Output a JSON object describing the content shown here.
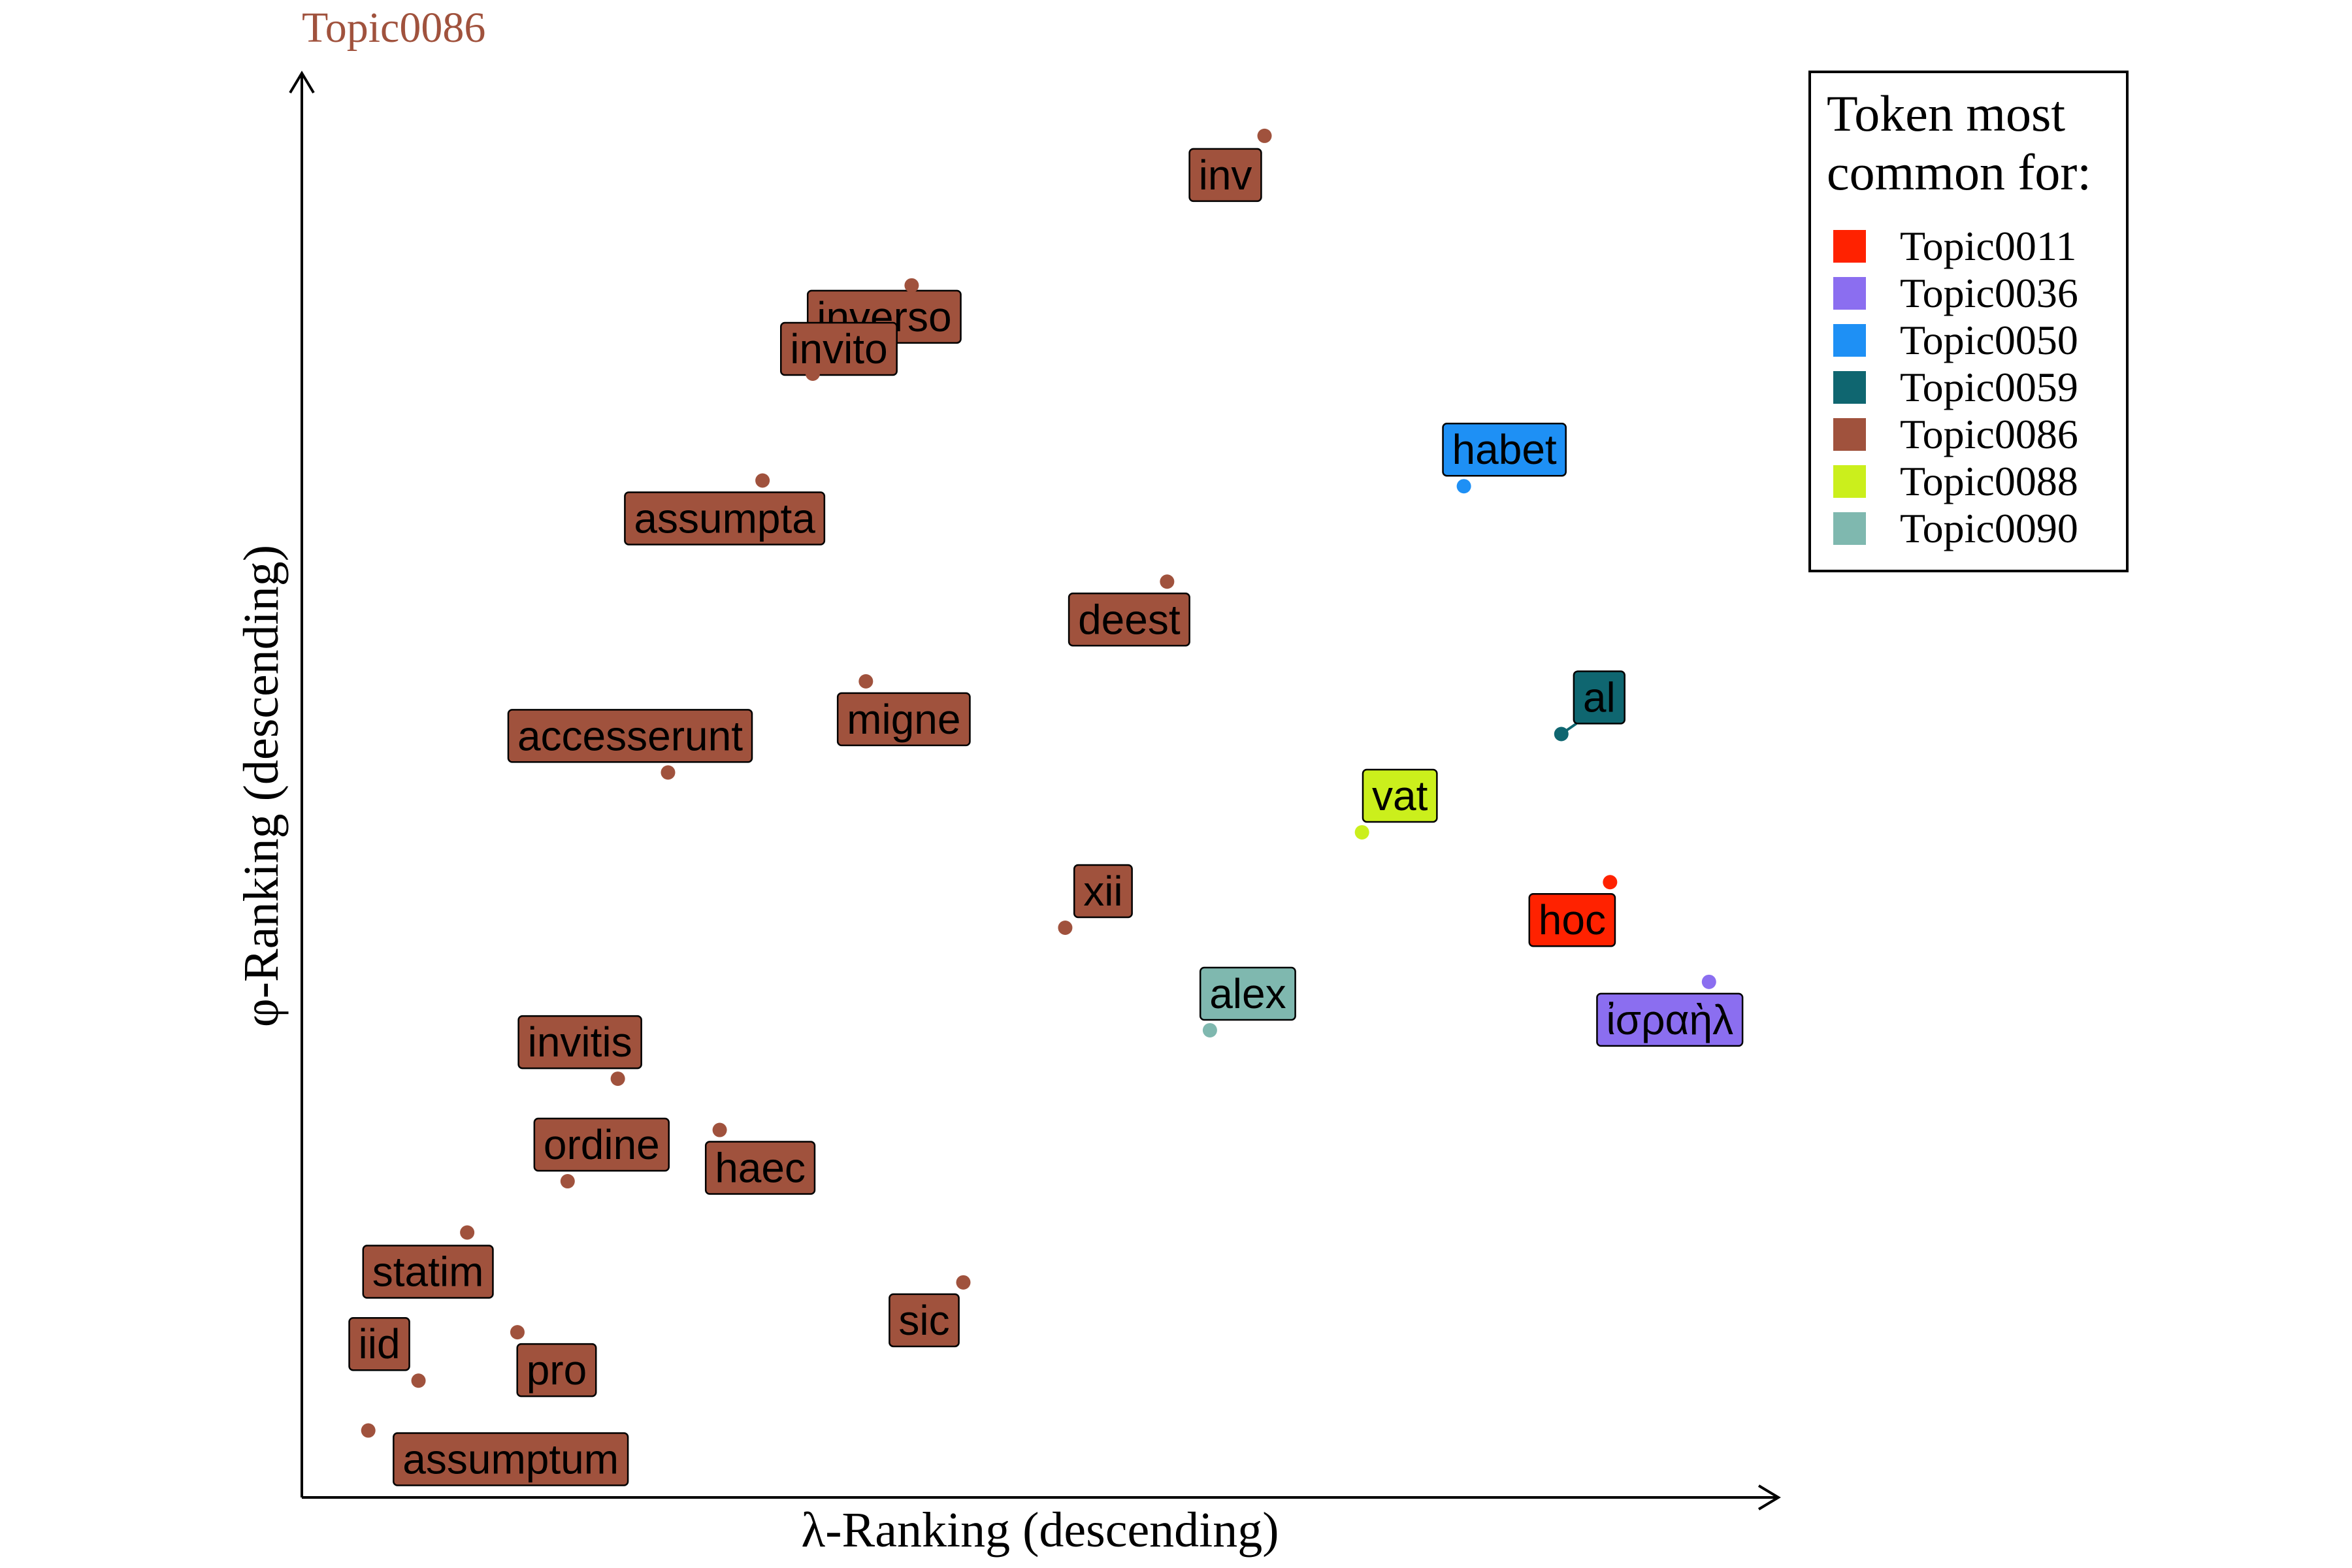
{
  "chart_data": {
    "type": "scatter",
    "title": "Topic0086",
    "title_color": "#A0523D",
    "xlabel": "λ-Ranking (descending)",
    "ylabel": "φ-Ranking (descending)",
    "xlim": [
      0,
      100
    ],
    "ylim": [
      0,
      100
    ],
    "grid": false,
    "legend": {
      "title_line1": "Token most",
      "title_line2": "common for:",
      "placement": "top-right",
      "items": [
        {
          "name": "Topic0011",
          "color": "#FF2200"
        },
        {
          "name": "Topic0036",
          "color": "#8B6EF0"
        },
        {
          "name": "Topic0050",
          "color": "#1E90F5"
        },
        {
          "name": "Topic0059",
          "color": "#0F6670"
        },
        {
          "name": "Topic0086",
          "color": "#A0523D"
        },
        {
          "name": "Topic0088",
          "color": "#CBEF1C"
        },
        {
          "name": "Topic0090",
          "color": "#7FB8AF"
        }
      ]
    },
    "points": [
      {
        "token": "inv",
        "topic": "Topic0086",
        "x": 65.2,
        "y": 95.6
      },
      {
        "token": "inverso",
        "topic": "Topic0086",
        "x": 41.3,
        "y": 85.1
      },
      {
        "token": "invito",
        "topic": "Topic0086",
        "x": 34.6,
        "y": 78.9
      },
      {
        "token": "assumpta",
        "topic": "Topic0086",
        "x": 31.2,
        "y": 71.4
      },
      {
        "token": "habet",
        "topic": "Topic0050",
        "x": 78.7,
        "y": 71.0
      },
      {
        "token": "deest",
        "topic": "Topic0086",
        "x": 58.6,
        "y": 64.3
      },
      {
        "token": "migne",
        "topic": "Topic0086",
        "x": 38.2,
        "y": 57.3
      },
      {
        "token": "al",
        "topic": "Topic0059",
        "x": 85.3,
        "y": 53.6
      },
      {
        "token": "accesserunt",
        "topic": "Topic0086",
        "x": 24.8,
        "y": 50.9
      },
      {
        "token": "vat",
        "topic": "Topic0088",
        "x": 71.8,
        "y": 46.7
      },
      {
        "token": "hoc",
        "topic": "Topic0011",
        "x": 88.6,
        "y": 43.2
      },
      {
        "token": "xii",
        "topic": "Topic0086",
        "x": 51.7,
        "y": 40.0
      },
      {
        "token": "ἰσραὴλ",
        "topic": "Topic0036",
        "x": 95.3,
        "y": 36.2
      },
      {
        "token": "alex",
        "topic": "Topic0090",
        "x": 61.5,
        "y": 32.8
      },
      {
        "token": "invitis",
        "topic": "Topic0086",
        "x": 21.4,
        "y": 29.4
      },
      {
        "token": "haec",
        "topic": "Topic0086",
        "x": 28.3,
        "y": 25.8
      },
      {
        "token": "ordine",
        "topic": "Topic0086",
        "x": 18.0,
        "y": 22.2
      },
      {
        "token": "statim",
        "topic": "Topic0086",
        "x": 11.2,
        "y": 18.6
      },
      {
        "token": "sic",
        "topic": "Topic0086",
        "x": 44.8,
        "y": 15.1
      },
      {
        "token": "pro",
        "topic": "Topic0086",
        "x": 14.6,
        "y": 11.6
      },
      {
        "token": "iid",
        "topic": "Topic0086",
        "x": 7.9,
        "y": 8.2
      },
      {
        "token": "assumptum",
        "topic": "Topic0086",
        "x": 4.5,
        "y": 4.7
      }
    ]
  }
}
